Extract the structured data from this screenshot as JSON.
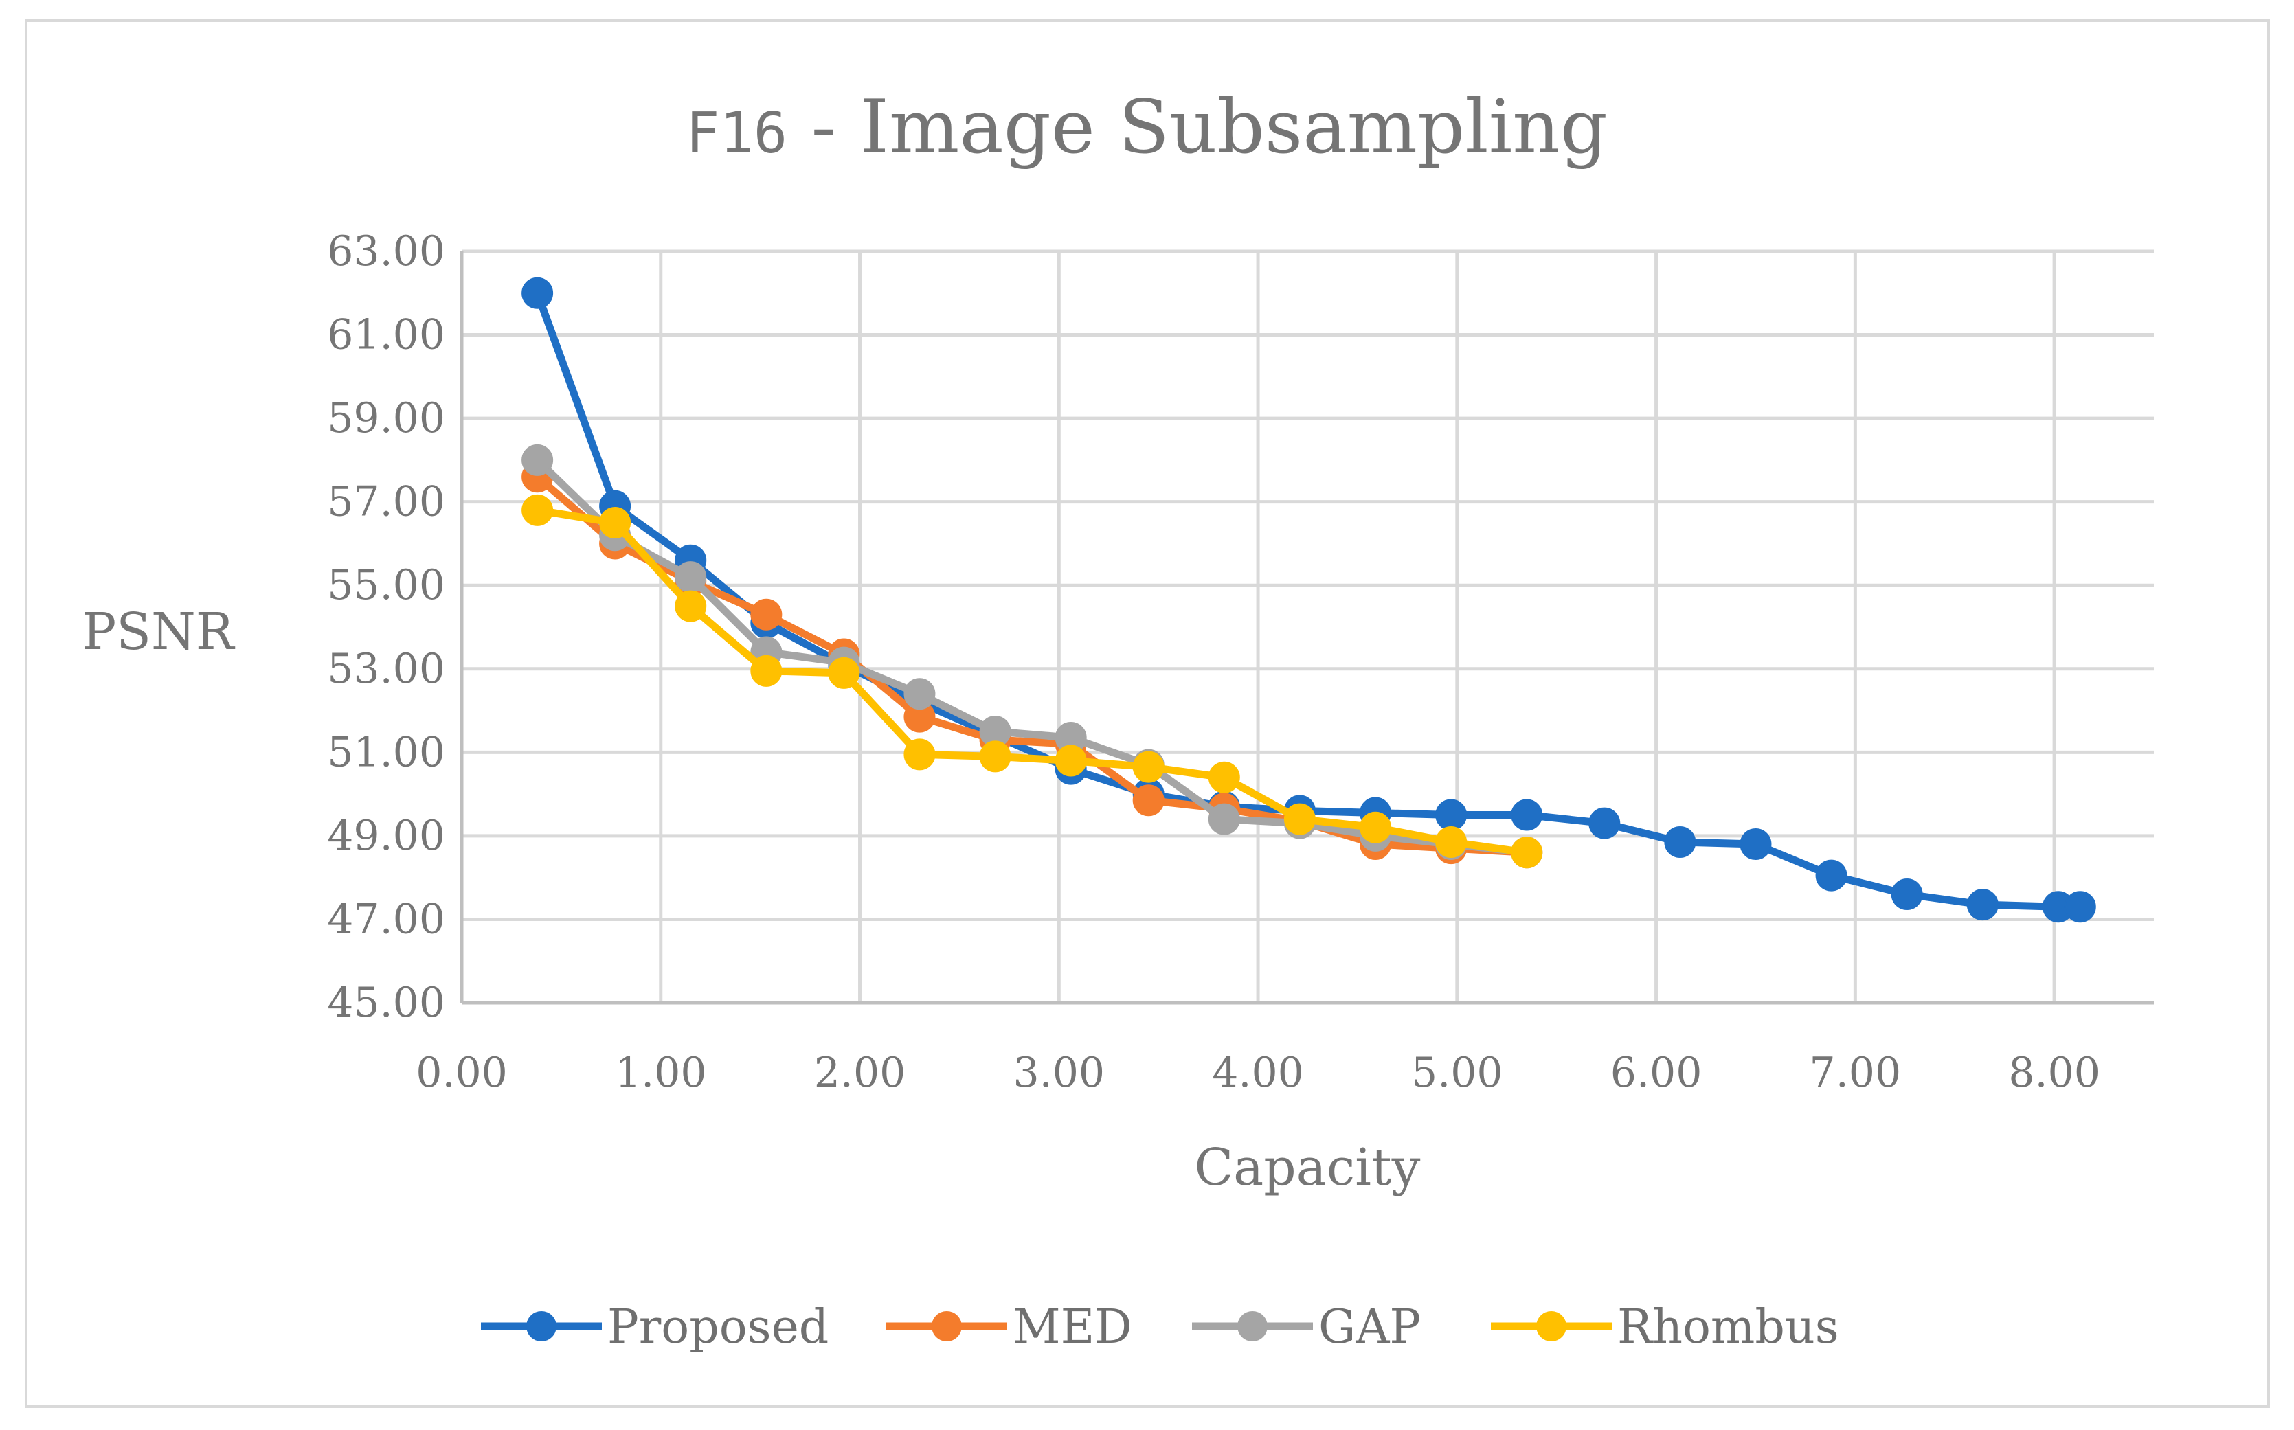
{
  "chart_data": {
    "type": "line",
    "title": "F16 - Image Subsampling",
    "title_parts": {
      "mono": "F16",
      "rest": " - Image Subsampling"
    },
    "xlabel": "Capacity",
    "ylabel": "PSNR",
    "xlim": [
      0,
      8.5
    ],
    "ylim": [
      45,
      63
    ],
    "x_ticks": [
      "0.00",
      "1.00",
      "2.00",
      "3.00",
      "4.00",
      "5.00",
      "6.00",
      "7.00",
      "8.00"
    ],
    "y_ticks": [
      "45.00",
      "47.00",
      "49.00",
      "51.00",
      "53.00",
      "55.00",
      "57.00",
      "59.00",
      "61.00",
      "63.00"
    ],
    "grid": true,
    "legend_position": "bottom",
    "series": [
      {
        "name": "Proposed",
        "color": "#1f6fc5",
        "x": [
          0.38,
          0.77,
          1.15,
          1.53,
          1.92,
          2.3,
          2.68,
          3.06,
          3.45,
          3.83,
          4.21,
          4.59,
          4.97,
          5.35,
          5.74,
          6.12,
          6.5,
          6.88,
          7.26,
          7.64,
          8.02,
          8.13
        ],
        "y": [
          62.0,
          56.9,
          55.6,
          54.1,
          53.1,
          52.2,
          51.4,
          50.6,
          50.0,
          49.7,
          49.6,
          49.55,
          49.5,
          49.5,
          49.3,
          48.85,
          48.8,
          48.05,
          47.6,
          47.35,
          47.3,
          47.3
        ]
      },
      {
        "name": "MED",
        "color": "#f47c2c",
        "x": [
          0.38,
          0.77,
          1.15,
          1.53,
          1.92,
          2.3,
          2.68,
          3.06,
          3.45,
          3.83,
          4.21,
          4.59,
          4.97,
          5.35
        ],
        "y": [
          57.6,
          56.0,
          55.1,
          54.3,
          53.35,
          51.85,
          51.3,
          51.2,
          49.85,
          49.65,
          49.35,
          48.8,
          48.7,
          48.6
        ]
      },
      {
        "name": "GAP",
        "color": "#a5a5a5",
        "x": [
          0.38,
          0.77,
          1.15,
          1.53,
          1.92,
          2.3,
          2.68,
          3.06,
          3.45,
          3.83,
          4.21,
          4.59,
          4.97,
          5.35
        ],
        "y": [
          58.0,
          56.2,
          55.2,
          53.4,
          53.15,
          52.4,
          51.5,
          51.35,
          50.7,
          49.4,
          49.3,
          49.0,
          48.8,
          48.6
        ]
      },
      {
        "name": "Rhombus",
        "color": "#ffc000",
        "x": [
          0.38,
          0.77,
          1.15,
          1.53,
          1.92,
          2.3,
          2.68,
          3.06,
          3.45,
          3.83,
          4.21,
          4.59,
          4.97,
          5.35
        ],
        "y": [
          56.8,
          56.5,
          54.5,
          52.95,
          52.9,
          50.95,
          50.9,
          50.8,
          50.65,
          50.4,
          49.4,
          49.2,
          48.85,
          48.6
        ]
      }
    ]
  }
}
